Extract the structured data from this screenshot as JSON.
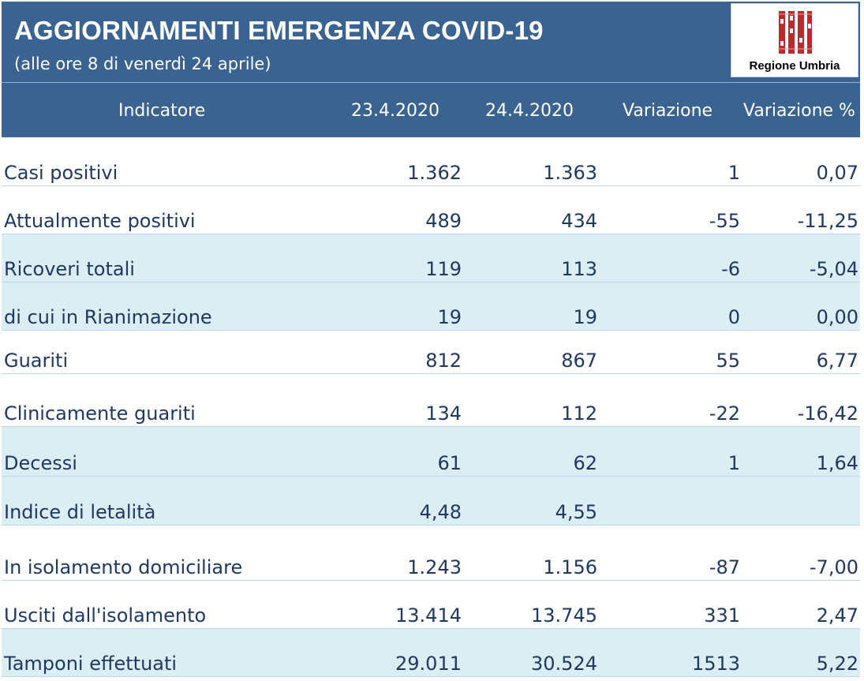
{
  "header": {
    "title": "AGGIORNAMENTI EMERGENZA COVID-19",
    "subtitle": "(alle ore 8 di venerdì 24 aprile)",
    "logo_text": "Regione Umbria"
  },
  "colors": {
    "banner": "#3a6391",
    "text": "#1f3864",
    "row_shade": "#daeef3",
    "logo_red": "#c0282e"
  },
  "table": {
    "columns": [
      "Indicatore",
      "23.4.2020",
      "24.4.2020",
      "Variazione",
      "Variazione %"
    ],
    "rows": [
      {
        "label": "Casi positivi",
        "d1": "1.362",
        "d2": "1.363",
        "var": "1",
        "pct": "0,07"
      },
      {
        "label": "Attualmente positivi",
        "d1": "489",
        "d2": "434",
        "var": "-55",
        "pct": "-11,25"
      },
      {
        "label": "Ricoveri totali",
        "d1": "119",
        "d2": "113",
        "var": "-6",
        "pct": "-5,04"
      },
      {
        "label": "di cui in Rianimazione",
        "d1": "19",
        "d2": "19",
        "var": "0",
        "pct": "0,00"
      },
      {
        "label": "Guariti",
        "d1": "812",
        "d2": "867",
        "var": "55",
        "pct": "6,77"
      },
      {
        "label": "Clinicamente guariti",
        "d1": "134",
        "d2": "112",
        "var": "-22",
        "pct": "-16,42"
      },
      {
        "label": "Decessi",
        "d1": "61",
        "d2": "62",
        "var": "1",
        "pct": "1,64"
      },
      {
        "label": "Indice di letalità",
        "d1": "4,48",
        "d2": "4,55",
        "var": "",
        "pct": ""
      },
      {
        "label": "In isolamento domiciliare",
        "d1": "1.243",
        "d2": "1.156",
        "var": "-87",
        "pct": "-7,00"
      },
      {
        "label": "Usciti dall'isolamento",
        "d1": "13.414",
        "d2": "13.745",
        "var": "331",
        "pct": "2,47"
      },
      {
        "label": "Tamponi effettuati",
        "d1": "29.011",
        "d2": "30.524",
        "var": "1513",
        "pct": "5,22"
      }
    ]
  }
}
